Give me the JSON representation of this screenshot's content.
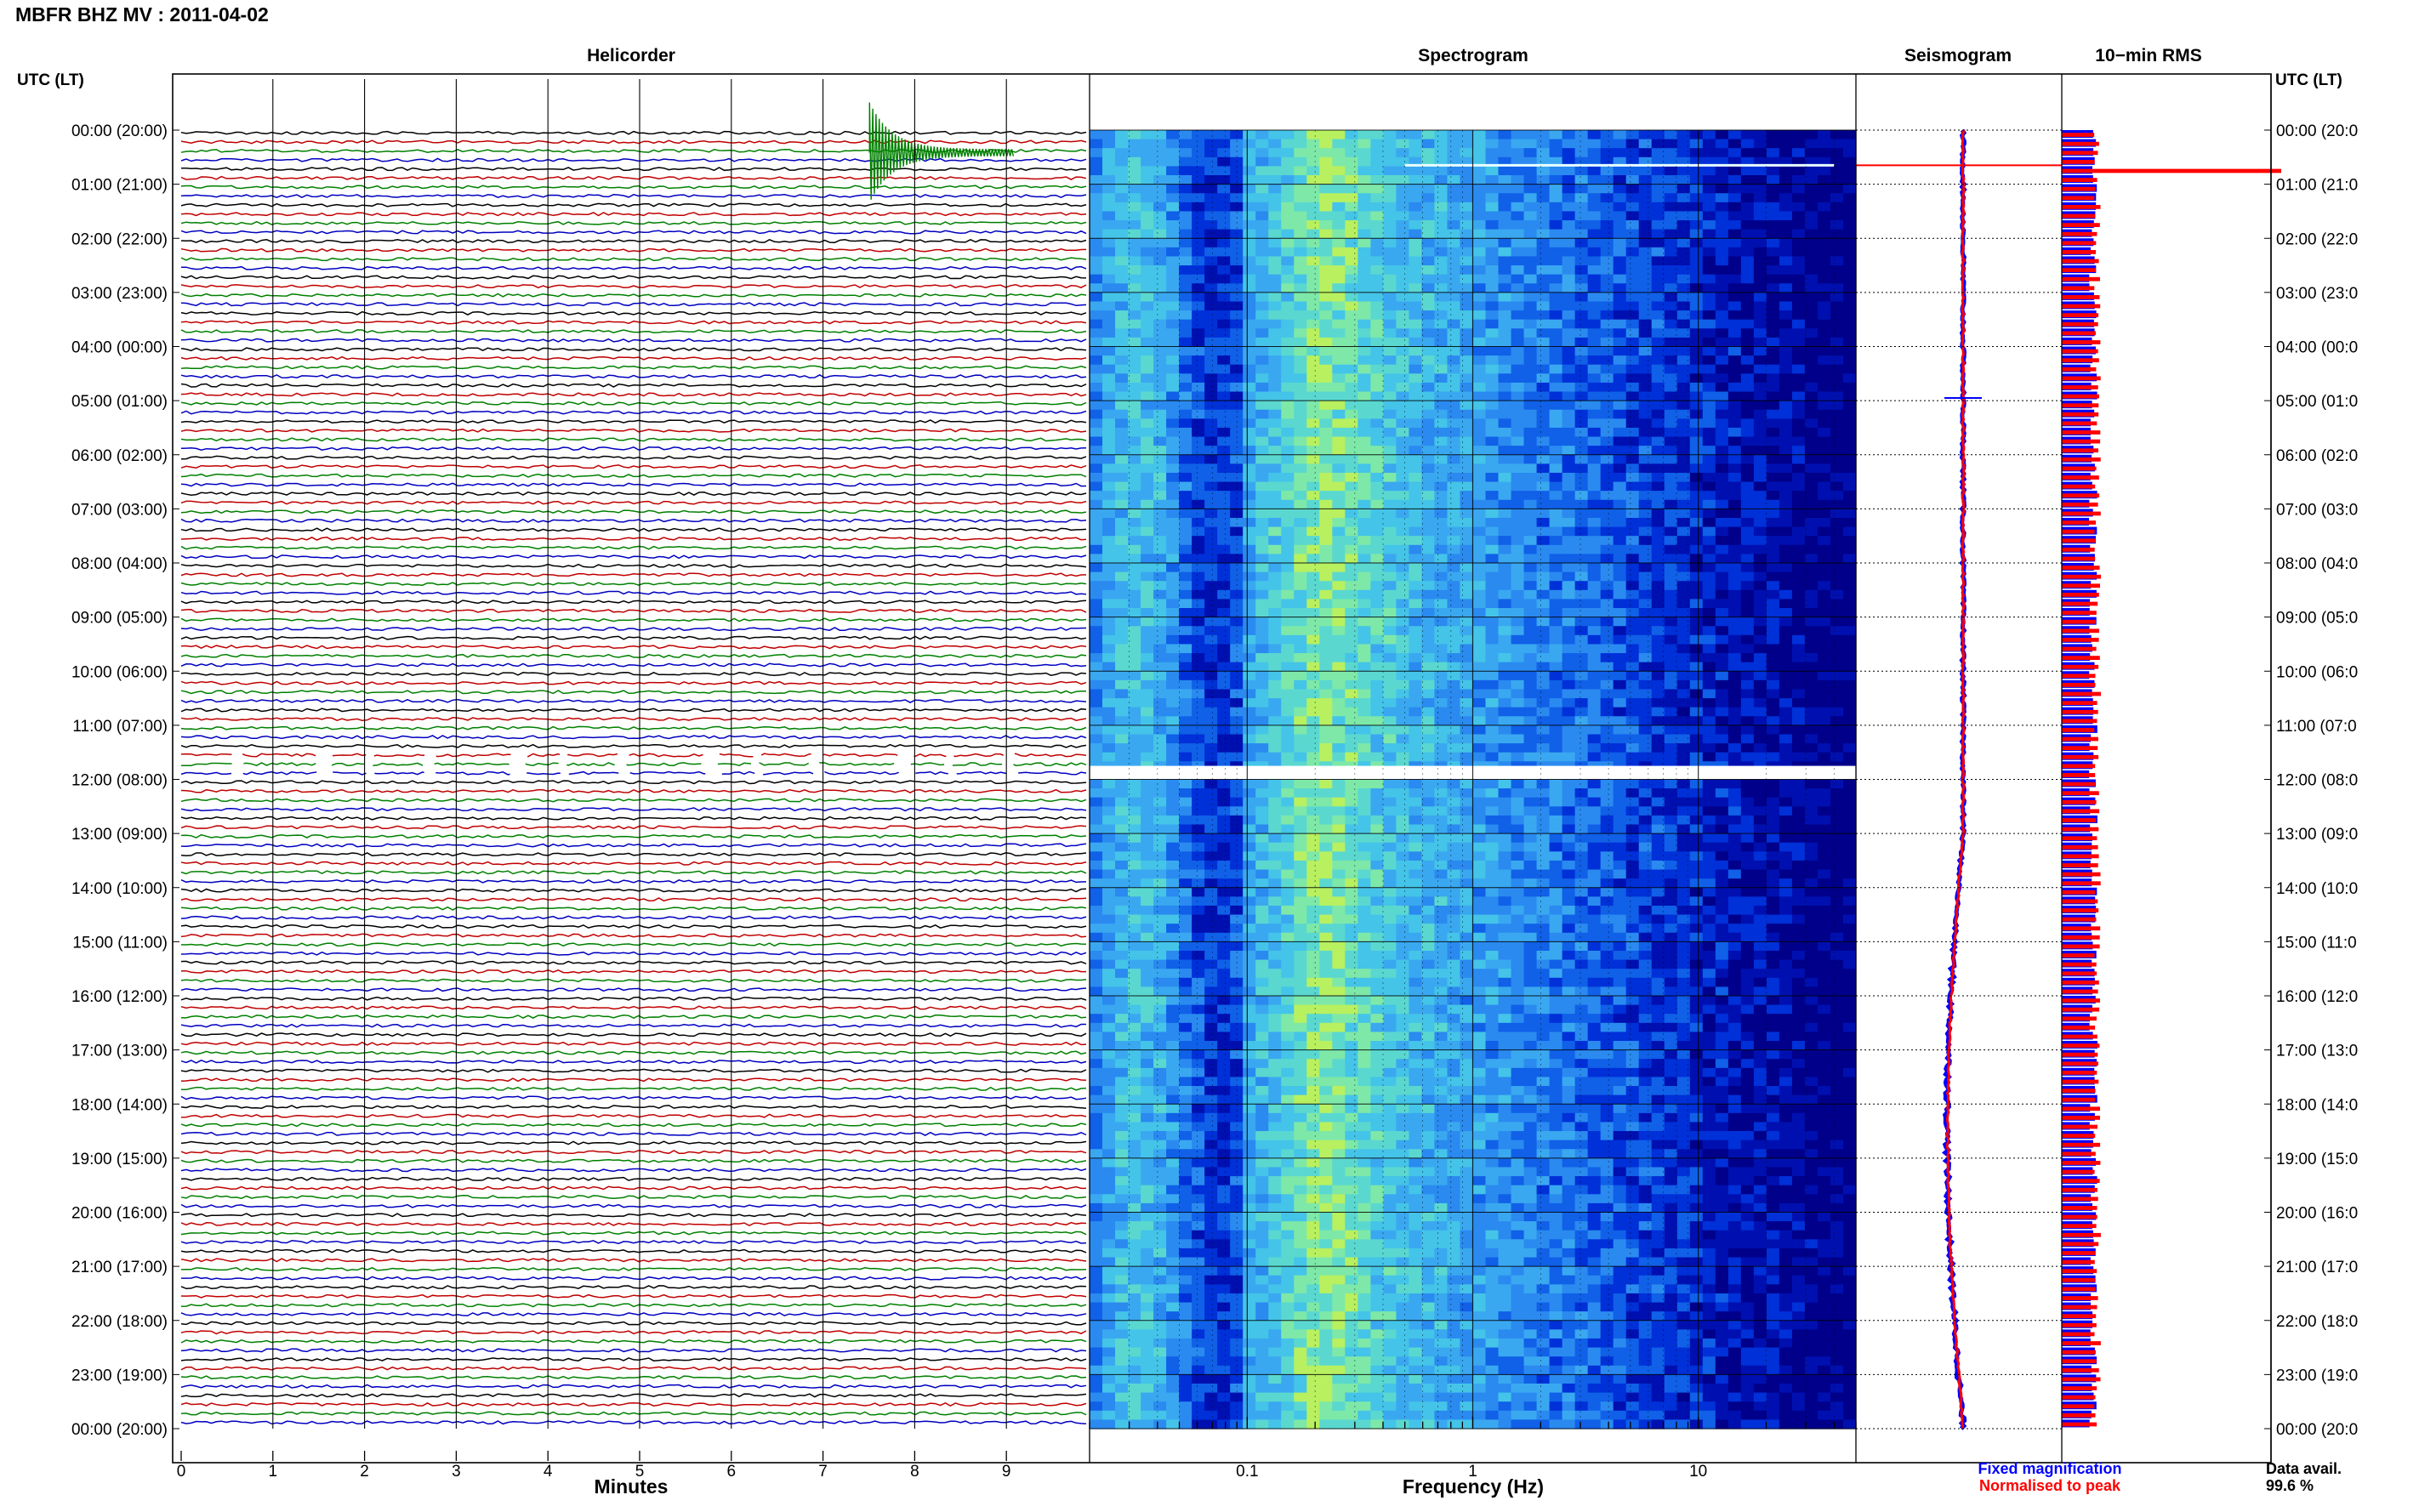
{
  "title": "MBFR BHZ MV : 2011-04-02",
  "axis_time_label_left": "UTC (LT)",
  "axis_time_label_right": "UTC (LT)",
  "panels": {
    "helicorder": "Helicorder",
    "spectrogram": "Spectrogram",
    "seismogram": "Seismogram",
    "rms": "10−min RMS"
  },
  "legend": {
    "fixed": "Fixed magnification",
    "normalised": "Normalised to peak",
    "fixed_color": "#0000ff",
    "normalised_color": "#ff0000"
  },
  "data_avail": {
    "label": "Data avail.",
    "value": "99.6 %"
  },
  "colors": {
    "helicorder_traces": [
      "#000000",
      "#c00000",
      "#008000",
      "#0000c0"
    ],
    "rms_bar": "#0000ff",
    "rms_bar_norm": "#ff0000",
    "spectrogram_dark": "#00008b",
    "spectrogram_hot": "#b8f060"
  },
  "chart_data": [
    {
      "type": "line",
      "panel": "Helicorder",
      "xlabel": "Minutes",
      "x_ticks": [
        "0",
        "1",
        "2",
        "3",
        "4",
        "5",
        "6",
        "7",
        "8",
        "9"
      ],
      "xlim": [
        0,
        10
      ],
      "y_ticks_left": [
        "00:00 (20:00)",
        "01:00 (21:00)",
        "02:00 (22:00)",
        "03:00 (23:00)",
        "04:00 (00:00)",
        "05:00 (01:00)",
        "06:00 (02:00)",
        "07:00 (03:00)",
        "08:00 (04:00)",
        "09:00 (05:00)",
        "10:00 (06:00)",
        "11:00 (07:00)",
        "12:00 (08:00)",
        "13:00 (09:00)",
        "14:00 (10:00)",
        "15:00 (11:00)",
        "16:00 (12:00)",
        "17:00 (13:00)",
        "18:00 (14:00)",
        "19:00 (15:00)",
        "20:00 (16:00)",
        "21:00 (17:00)",
        "22:00 (18:00)",
        "23:00 (19:00)",
        "00:00 (20:00)"
      ],
      "y_ticks_right": [
        "00:00 (20:0",
        "01:00 (21:0",
        "02:00 (22:0",
        "03:00 (23:0",
        "04:00 (00:0",
        "05:00 (01:0",
        "06:00 (02:0",
        "07:00 (03:0",
        "08:00 (04:0",
        "09:00 (05:0",
        "10:00 (06:0",
        "11:00 (07:0",
        "12:00 (08:0",
        "13:00 (09:0",
        "14:00 (10:0",
        "15:00 (11:0",
        "16:00 (12:0",
        "17:00 (13:0",
        "18:00 (14:0",
        "19:00 (15:0",
        "20:00 (16:0",
        "21:00 (17:0",
        "22:00 (18:0",
        "23:00 (19:0",
        "00:00 (20:0"
      ],
      "lines_per_hour": 6,
      "events": [
        {
          "hour": 0,
          "line": 2,
          "minute": 7.6,
          "label": ""
        }
      ],
      "gap": {
        "hour_start": 11.5,
        "hour_end": 12.0
      }
    },
    {
      "type": "heatmap",
      "panel": "Spectrogram",
      "xlabel": "Frequency (Hz)",
      "x_scale": "log",
      "xlim": [
        0.02,
        50
      ],
      "x_ticks": [
        "0.1",
        "1",
        "10"
      ],
      "gap": {
        "hour_start": 11.75,
        "hour_end": 12.0
      }
    },
    {
      "type": "line",
      "panel": "Seismogram",
      "series": [
        {
          "name": "Fixed magnification",
          "color": "#0000ff"
        },
        {
          "name": "Normalised to peak",
          "color": "#ff0000"
        }
      ],
      "spike_hours": [
        0.65,
        4.95
      ]
    },
    {
      "type": "bar",
      "panel": "10-min RMS",
      "series": [
        {
          "name": "Fixed magnification",
          "color": "#0000ff"
        },
        {
          "name": "Normalised to peak",
          "color": "#ff0000"
        }
      ],
      "peak_hour": 0.6
    }
  ]
}
